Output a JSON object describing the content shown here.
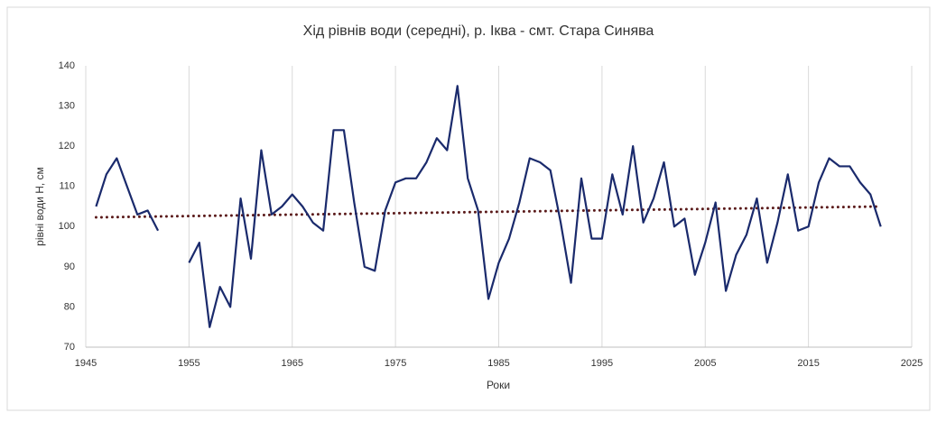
{
  "chart_data": {
    "type": "line",
    "title": "Хід рівнів води (середні), р. Іква - смт. Стара Синява",
    "x_label": "Роки",
    "y_label": "рівні води Н, см",
    "x": [
      1946,
      1947,
      1948,
      1949,
      1950,
      1951,
      1952,
      1953,
      1954,
      1955,
      1956,
      1957,
      1958,
      1959,
      1960,
      1961,
      1962,
      1963,
      1964,
      1965,
      1966,
      1967,
      1968,
      1969,
      1970,
      1971,
      1972,
      1973,
      1974,
      1975,
      1976,
      1977,
      1978,
      1979,
      1980,
      1981,
      1982,
      1983,
      1984,
      1985,
      1986,
      1987,
      1988,
      1989,
      1990,
      1991,
      1992,
      1993,
      1994,
      1995,
      1996,
      1997,
      1998,
      1999,
      2000,
      2001,
      2002,
      2003,
      2004,
      2005,
      2006,
      2007,
      2008,
      2009,
      2010,
      2011,
      2012,
      2013,
      2014,
      2015,
      2016,
      2017,
      2018,
      2019,
      2020,
      2021,
      2022
    ],
    "series": [
      {
        "color": "#1a2a6c",
        "values": [
          105,
          113,
          117,
          110,
          103,
          104,
          99,
          null,
          null,
          91,
          96,
          75,
          85,
          80,
          107,
          92,
          119,
          103,
          105,
          108,
          105,
          101,
          99,
          124,
          124,
          106,
          90,
          89,
          104,
          111,
          112,
          112,
          116,
          122,
          119,
          135,
          112,
          104,
          82,
          91,
          97,
          106,
          117,
          116,
          114,
          101,
          86,
          112,
          97,
          97,
          113,
          103,
          120,
          101,
          107,
          116,
          100,
          102,
          88,
          96,
          106,
          84,
          93,
          98,
          107,
          91,
          101,
          113,
          99,
          100,
          111,
          117,
          115,
          115,
          111,
          108,
          100
        ]
      }
    ],
    "trendline": {
      "x": [
        1946,
        2022
      ],
      "values": [
        102.3,
        105.0
      ],
      "color": "#5a1a1a"
    },
    "xlim": [
      1945,
      2025
    ],
    "xticks": [
      1945,
      1955,
      1965,
      1975,
      1985,
      1995,
      2005,
      2015,
      2025
    ],
    "ylim": [
      70,
      140
    ],
    "yticks": [
      70,
      80,
      90,
      100,
      110,
      120,
      130,
      140
    ],
    "grid": "x"
  }
}
